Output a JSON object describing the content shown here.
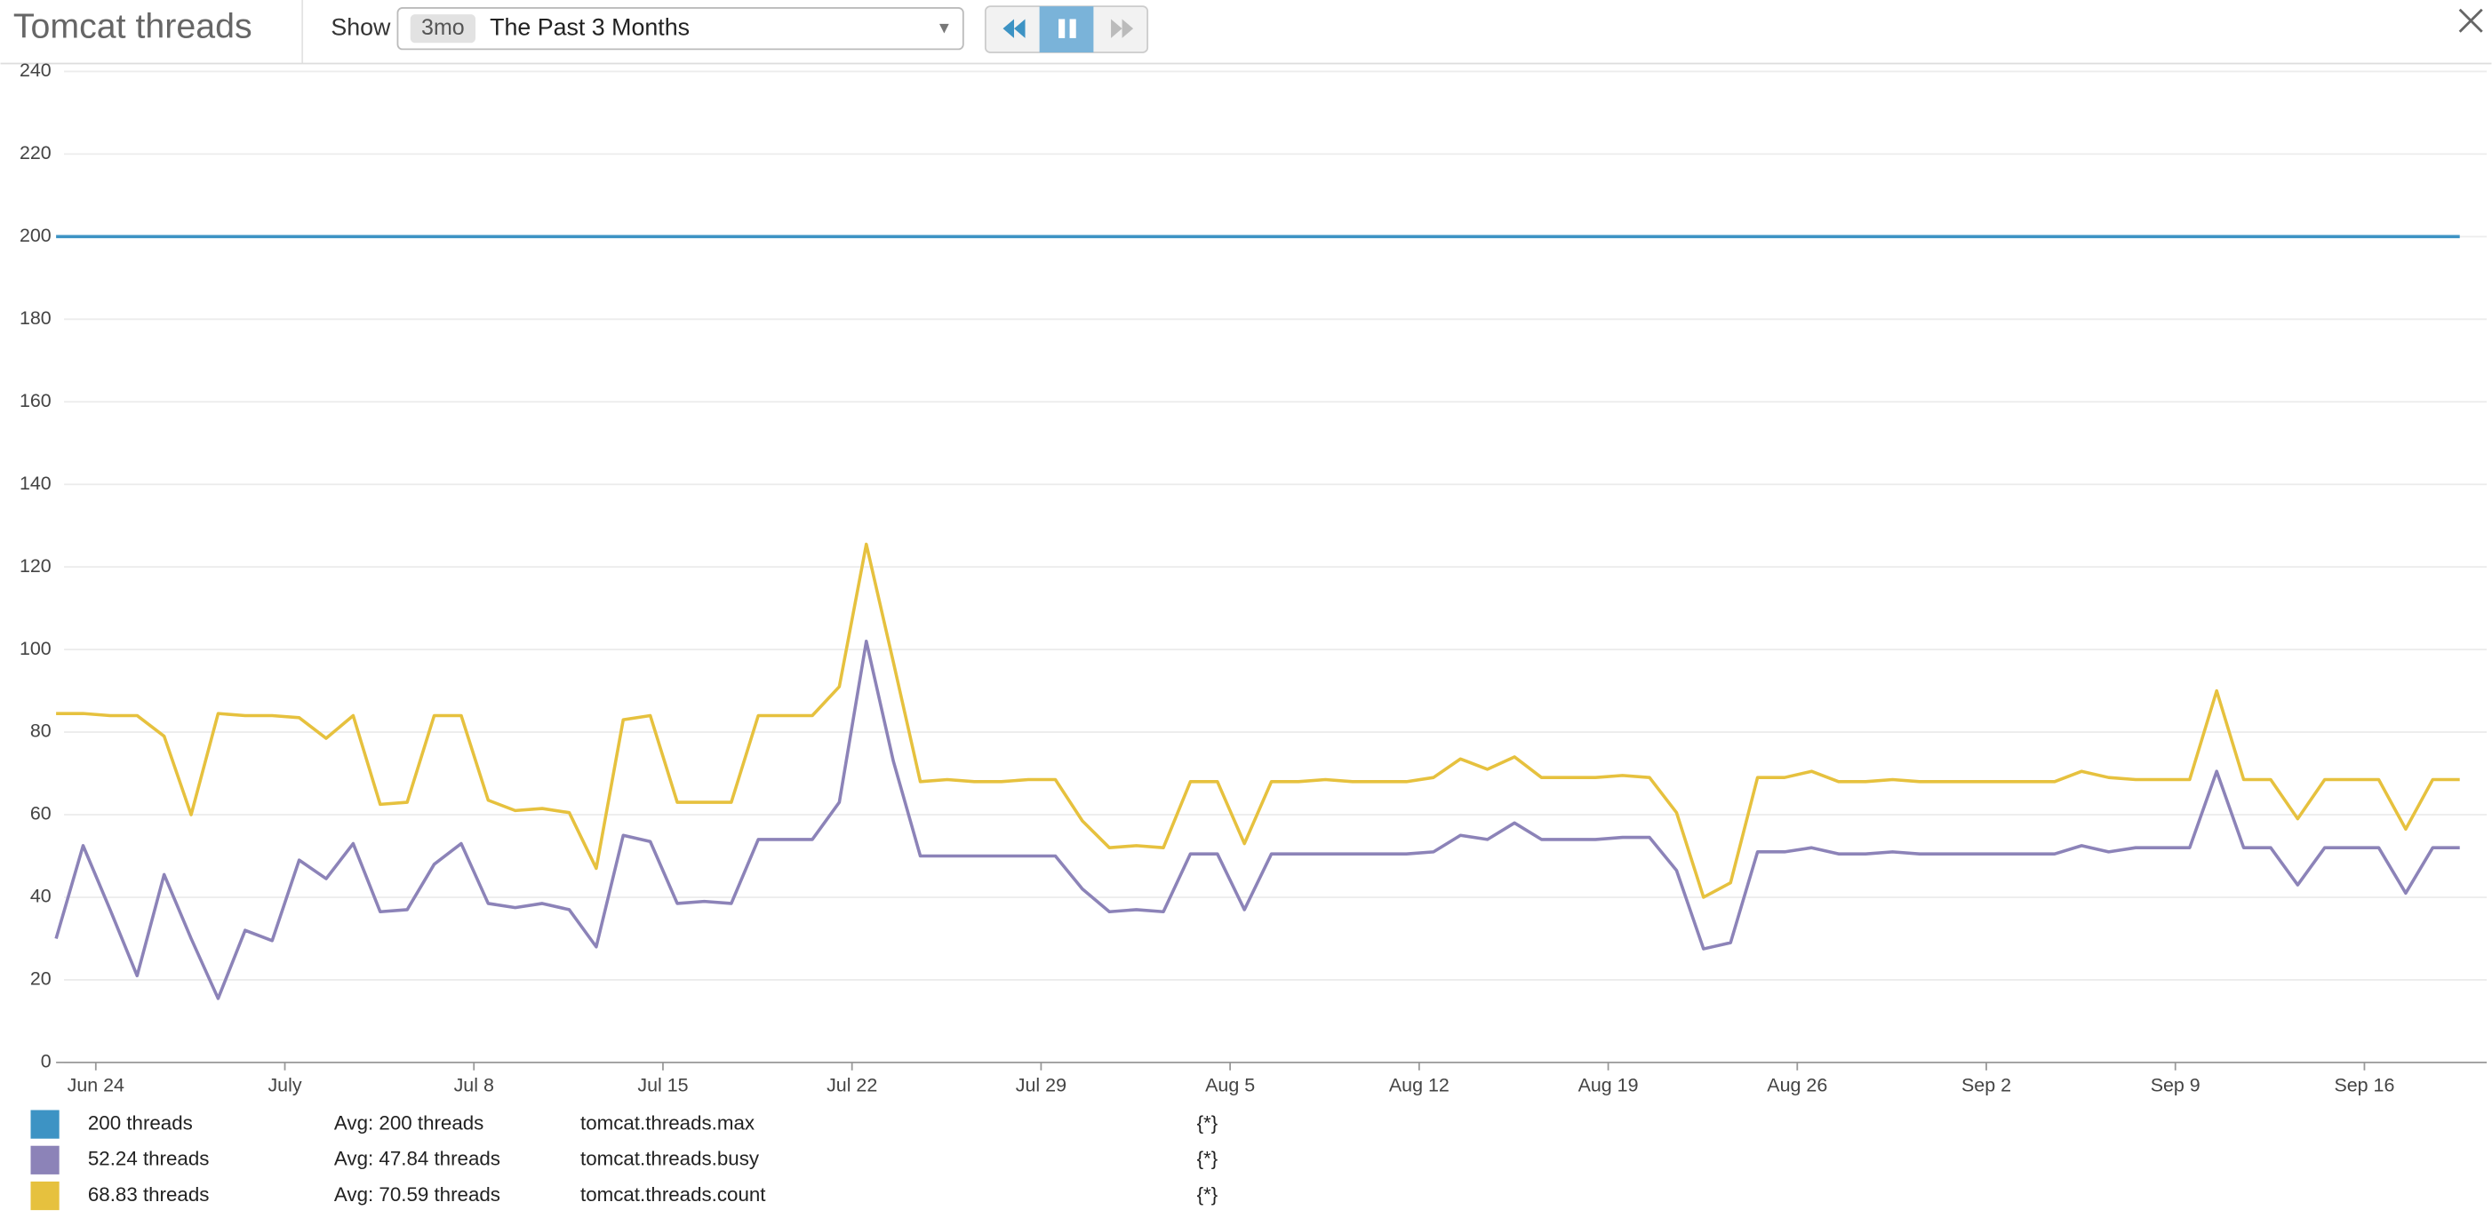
{
  "header": {
    "title": "Tomcat threads",
    "show_label": "Show",
    "range_badge": "3mo",
    "range_text": "The Past 3 Months"
  },
  "chart_data": {
    "type": "line",
    "categories": [
      null,
      "Jun 24",
      null,
      null,
      null,
      null,
      null,
      null,
      "July",
      null,
      null,
      null,
      null,
      null,
      null,
      "Jul 8",
      null,
      null,
      null,
      null,
      null,
      null,
      "Jul 15",
      null,
      null,
      null,
      null,
      null,
      null,
      "Jul 22",
      null,
      null,
      null,
      null,
      null,
      null,
      "Jul 29",
      null,
      null,
      null,
      null,
      null,
      null,
      "Aug 5",
      null,
      null,
      null,
      null,
      null,
      null,
      "Aug 12",
      null,
      null,
      null,
      null,
      null,
      null,
      "Aug 19",
      null,
      null,
      null,
      null,
      null,
      null,
      "Aug 26",
      null,
      null,
      null,
      null,
      null,
      null,
      "Sep 2",
      null,
      null,
      null,
      null,
      null,
      null,
      "Sep 9",
      null,
      null,
      null,
      null,
      null,
      null,
      "Sep 16",
      null,
      null,
      null,
      null
    ],
    "series": [
      {
        "name": "tomcat.threads.max",
        "color": "#3d93c4",
        "current": "200 threads",
        "avg": "Avg: 200 threads",
        "scope": "{*}",
        "values": [
          200,
          200,
          200,
          200,
          200,
          200,
          200,
          200,
          200,
          200,
          200,
          200,
          200,
          200,
          200,
          200,
          200,
          200,
          200,
          200,
          200,
          200,
          200,
          200,
          200,
          200,
          200,
          200,
          200,
          200,
          200,
          200,
          200,
          200,
          200,
          200,
          200,
          200,
          200,
          200,
          200,
          200,
          200,
          200,
          200,
          200,
          200,
          200,
          200,
          200,
          200,
          200,
          200,
          200,
          200,
          200,
          200,
          200,
          200,
          200,
          200,
          200,
          200,
          200,
          200,
          200,
          200,
          200,
          200,
          200,
          200,
          200,
          200,
          200,
          200,
          200,
          200,
          200,
          200,
          200,
          200,
          200,
          200,
          200,
          200,
          200,
          200,
          200,
          200,
          200
        ]
      },
      {
        "name": "tomcat.threads.busy",
        "color": "#8c83b8",
        "current": "52.24 threads",
        "avg": "Avg: 47.84 threads",
        "scope": "{*}",
        "values": [
          30,
          52.5,
          37,
          21,
          45.5,
          30,
          15.5,
          32,
          29.5,
          49,
          44.5,
          53,
          36.5,
          37,
          48,
          53,
          38.5,
          37.5,
          38.5,
          37,
          28,
          55,
          53.5,
          38.5,
          39,
          38.5,
          54,
          54,
          54,
          63,
          102,
          73,
          50,
          50,
          50,
          50,
          50,
          50,
          42,
          36.5,
          37,
          36.5,
          50.5,
          50.5,
          37,
          50.5,
          50.5,
          50.5,
          50.5,
          50.5,
          50.5,
          51,
          55,
          54,
          58,
          54,
          54,
          54,
          54.5,
          54.5,
          46.5,
          27.5,
          29,
          51,
          51,
          52,
          50.5,
          50.5,
          51,
          50.5,
          50.5,
          50.5,
          50.5,
          50.5,
          50.5,
          52.5,
          51,
          52,
          52,
          52,
          70.5,
          52,
          52,
          43,
          52,
          52,
          52,
          41,
          52,
          52
        ]
      },
      {
        "name": "tomcat.threads.count",
        "color": "#e6c13e",
        "current": "68.83 threads",
        "avg": "Avg: 70.59 threads",
        "scope": "{*}",
        "values": [
          84.5,
          84.5,
          84,
          84,
          79,
          60,
          84.5,
          84,
          84,
          83.5,
          78.5,
          84,
          62.5,
          63,
          84,
          84,
          63.5,
          61,
          61.5,
          60.5,
          47,
          83,
          84,
          63,
          63,
          63,
          84,
          84,
          84,
          91,
          125.5,
          97,
          68,
          68.5,
          68,
          68,
          68.5,
          68.5,
          58.5,
          52,
          52.5,
          52,
          68,
          68,
          53,
          68,
          68,
          68.5,
          68,
          68,
          68,
          69,
          73.5,
          71,
          74,
          69,
          69,
          69,
          69.5,
          69,
          60.5,
          40,
          43.5,
          69,
          69,
          70.5,
          68,
          68,
          68.5,
          68,
          68,
          68,
          68,
          68,
          68,
          70.5,
          69,
          68.5,
          68.5,
          68.5,
          90,
          68.5,
          68.5,
          59,
          68.5,
          68.5,
          68.5,
          56.5,
          68.5,
          68.5
        ]
      }
    ],
    "ylim": [
      0,
      240
    ],
    "yticks": [
      0,
      20,
      40,
      60,
      80,
      100,
      120,
      140,
      160,
      180,
      200,
      220,
      240
    ],
    "grid": true
  }
}
